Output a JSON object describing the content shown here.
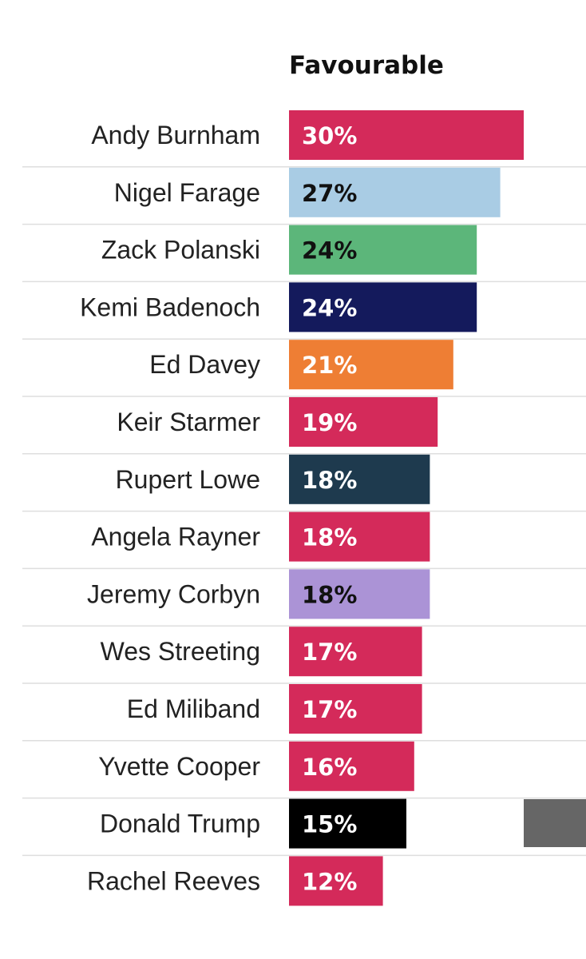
{
  "chart_data": {
    "type": "bar",
    "orientation": "horizontal",
    "title": "Favourable",
    "categories": [
      "Andy Burnham",
      "Nigel Farage",
      "Zack Polanski",
      "Kemi Badenoch",
      "Ed Davey",
      "Keir Starmer",
      "Rupert Lowe",
      "Angela Rayner",
      "Jeremy Corbyn",
      "Wes Streeting",
      "Ed Miliband",
      "Yvette Cooper",
      "Donald Trump",
      "Rachel Reeves"
    ],
    "values": [
      30,
      27,
      24,
      24,
      21,
      19,
      18,
      18,
      18,
      17,
      17,
      16,
      15,
      12
    ],
    "value_labels": [
      "30%",
      "27%",
      "24%",
      "24%",
      "21%",
      "19%",
      "18%",
      "18%",
      "18%",
      "17%",
      "17%",
      "16%",
      "15%",
      "12%"
    ],
    "colors": [
      "#d42a5a",
      "#a9cce4",
      "#5cb67a",
      "#141a5c",
      "#ee7e34",
      "#d42a5a",
      "#1e3a4e",
      "#d42a5a",
      "#ab93d6",
      "#d42a5a",
      "#d42a5a",
      "#d42a5a",
      "#000000",
      "#d42a5a"
    ],
    "label_colors": [
      "#ffffff",
      "#111111",
      "#111111",
      "#ffffff",
      "#ffffff",
      "#ffffff",
      "#ffffff",
      "#ffffff",
      "#111111",
      "#ffffff",
      "#ffffff",
      "#ffffff",
      "#ffffff",
      "#ffffff"
    ],
    "xlim": [
      0,
      30
    ],
    "grid": false,
    "legend": "none",
    "partial_element_color": "#666666"
  }
}
